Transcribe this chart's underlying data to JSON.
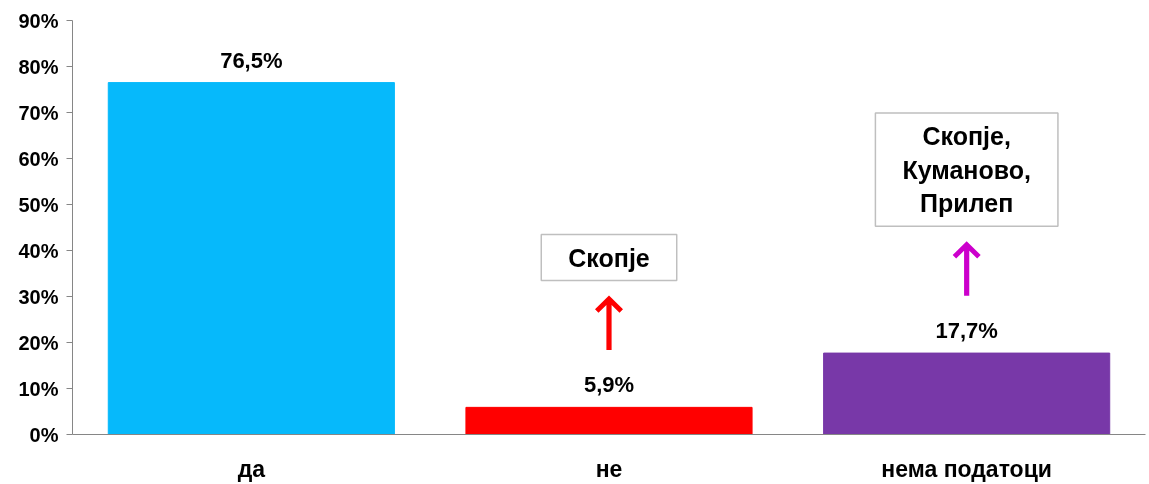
{
  "chart_data": {
    "type": "bar",
    "categories": [
      "да",
      "не",
      "нема податоци"
    ],
    "values": [
      76.5,
      5.9,
      17.7
    ],
    "colors": [
      "#06b9fb",
      "#ff0000",
      "#7838a8"
    ],
    "value_labels": [
      "76,5%",
      "5,9%",
      "17,7%"
    ],
    "ylim": [
      0,
      90
    ],
    "yticks": [
      {
        "value": 0,
        "label": "0%"
      },
      {
        "value": 10,
        "label": "10%"
      },
      {
        "value": 20,
        "label": "20%"
      },
      {
        "value": 30,
        "label": "30%"
      },
      {
        "value": 40,
        "label": "40%"
      },
      {
        "value": 50,
        "label": "50%"
      },
      {
        "value": 60,
        "label": "60%"
      },
      {
        "value": 70,
        "label": "70%"
      },
      {
        "value": 80,
        "label": "80%"
      },
      {
        "value": 90,
        "label": "90%"
      }
    ],
    "grid": false,
    "annotations": [
      "Скопје",
      "Скопје,\nКуманово,\nПрилеп"
    ]
  }
}
